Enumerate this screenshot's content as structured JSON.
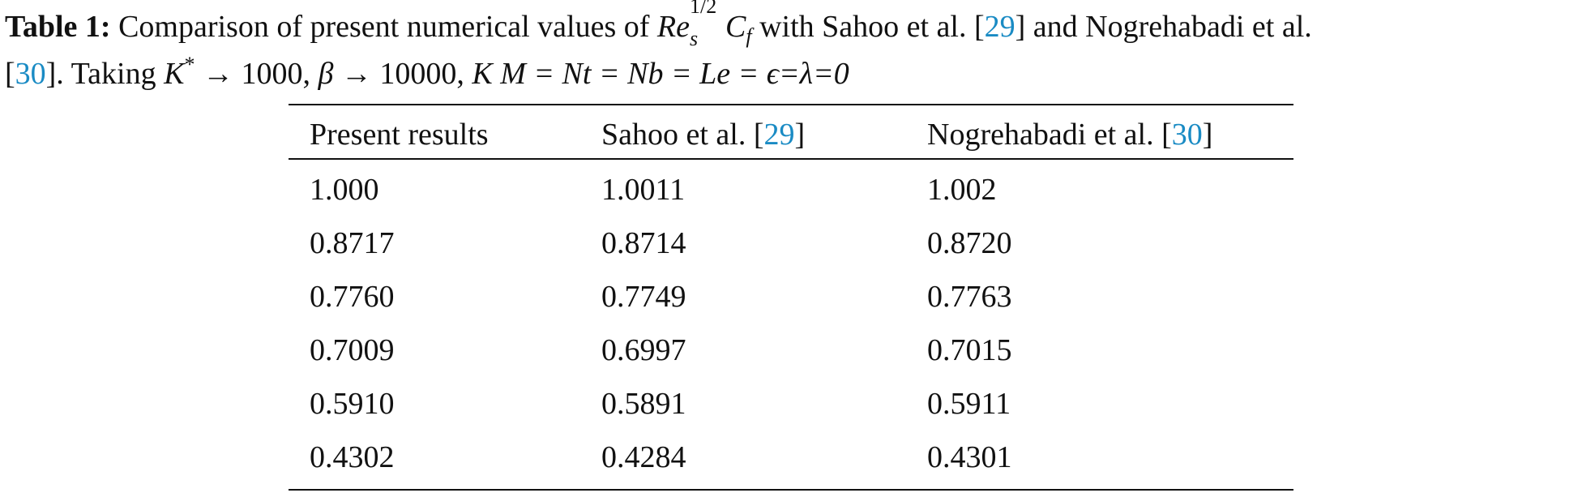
{
  "caption": {
    "label": "Table 1:",
    "text_before": "Comparison of present numerical values of",
    "math_re": "Re",
    "math_re_sup": "1/2",
    "math_re_sub": "s",
    "math_cf": "C",
    "math_cf_sub": "f",
    "text_with": "with Sahoo et al. [",
    "ref_sahoo": "29",
    "text_and": "] and Nogrehabadi et al.",
    "text_open_bracket": "[",
    "ref_nogrehabadi": "30",
    "text_taking": "]. Taking",
    "math_k": "K",
    "math_k_sup": "*",
    "math_arrow_1": "→ 1000,",
    "math_beta": "β",
    "math_arrow_2": "→ 10000,",
    "math_tail": "K M = Nt = Nb = Le = ϵ=λ=0"
  },
  "table": {
    "headers": [
      {
        "text": "Present results",
        "ref": "",
        "close": ""
      },
      {
        "text": "Sahoo et al. [",
        "ref": "29",
        "close": "]"
      },
      {
        "text": "Nogrehabadi et al. [",
        "ref": "30",
        "close": "]"
      }
    ],
    "rows": [
      [
        "1.000",
        "1.0011",
        "1.002"
      ],
      [
        "0.8717",
        "0.8714",
        "0.8720"
      ],
      [
        "0.7760",
        "0.7749",
        "0.7763"
      ],
      [
        "0.7009",
        "0.6997",
        "0.7015"
      ],
      [
        "0.5910",
        "0.5891",
        "0.5911"
      ],
      [
        "0.4302",
        "0.4284",
        "0.4301"
      ]
    ]
  },
  "colors": {
    "text": "#111111",
    "citation": "#1a8bc4"
  }
}
